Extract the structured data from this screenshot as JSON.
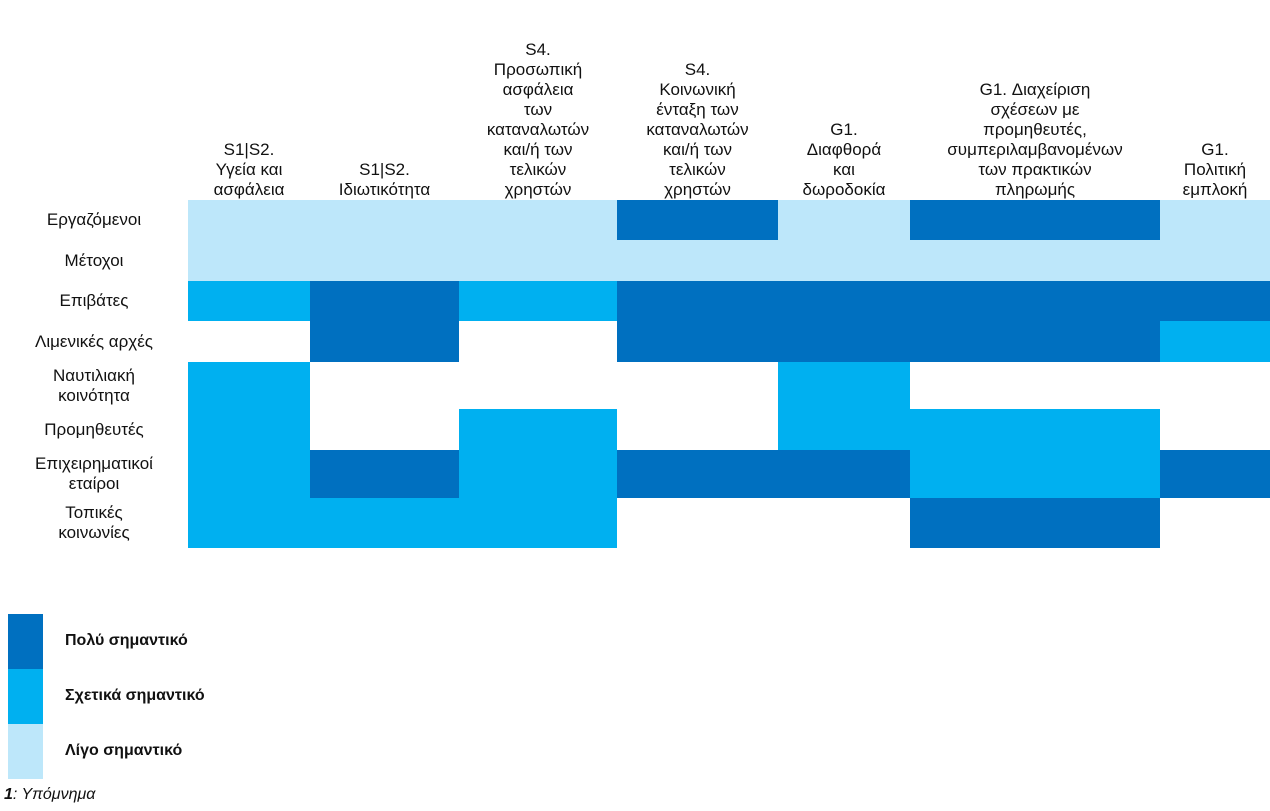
{
  "colors": {
    "very": "#0070C0",
    "relative": "#00B0F0",
    "little": "#BDE7FA",
    "none": "#FFFFFF"
  },
  "chart_data": {
    "type": "heatmap",
    "columns": [
      "S1|S2. Υγεία και ασφάλεια",
      "S1|S2. Ιδιωτικότητα",
      "S4. Προσωπική ασφάλεια των καταναλωτών και/ή των τελικών χρηστών",
      "S4. Κοινωνική ένταξη των καταναλωτών και/ή των τελικών χρηστών",
      "G1. Διαφθορά και δωροδοκία",
      "G1. Διαχείριση σχέσεων με προμηθευτές, συμπεριλαμβανομένων των πρακτικών πληρωμής",
      "G1. Πολιτική εμπλοκή"
    ],
    "rows": [
      "Εργαζόμενοι",
      "Μέτοχοι",
      "Επιβάτες",
      "Λιμενικές αρχές",
      "Ναυτιλιακή κοινότητα",
      "Προμηθευτές",
      "Επιχειρηματικοί εταίροι",
      "Τοπικές κοινωνίες"
    ],
    "scale": {
      "3": "Πολύ σημαντικό",
      "2": "Σχετικά σημαντικό",
      "1": "Λίγο σημαντικό",
      "0": ""
    },
    "values": [
      [
        1,
        1,
        1,
        3,
        1,
        3,
        1
      ],
      [
        1,
        1,
        1,
        1,
        1,
        1,
        1
      ],
      [
        2,
        3,
        2,
        3,
        3,
        3,
        3
      ],
      [
        0,
        3,
        0,
        3,
        3,
        3,
        2
      ],
      [
        2,
        0,
        0,
        0,
        2,
        0,
        0
      ],
      [
        2,
        0,
        2,
        0,
        2,
        2,
        0
      ],
      [
        2,
        3,
        2,
        3,
        3,
        2,
        3
      ],
      [
        2,
        2,
        2,
        0,
        0,
        3,
        0
      ]
    ]
  },
  "column_headers": [
    [
      "S1|S2.",
      "Υγεία και",
      "ασφάλεια"
    ],
    [
      "S1|S2.",
      "Ιδιωτικότητα"
    ],
    [
      "S4.",
      "Προσωπική",
      "ασφάλεια",
      "των",
      "καταναλωτών",
      "και/ή των",
      "τελικών",
      "χρηστών"
    ],
    [
      "S4.",
      "Κοινωνική",
      "ένταξη των",
      "καταναλωτών",
      "και/ή των",
      "τελικών",
      "χρηστών"
    ],
    [
      "G1.",
      "Διαφθορά",
      "και",
      "δωροδοκία"
    ],
    [
      "G1. Διαχείριση",
      "σχέσεων με",
      "προμηθευτές,",
      "συμπεριλαμβανομένων",
      "των πρακτικών",
      "πληρωμής"
    ],
    [
      "G1.",
      "Πολιτική",
      "εμπλοκή"
    ]
  ],
  "row_headers": [
    [
      "Εργαζόμενοι"
    ],
    [
      "Μέτοχοι"
    ],
    [
      "Επιβάτες"
    ],
    [
      "Λιμενικές αρχές"
    ],
    [
      "Ναυτιλιακή",
      "κοινότητα"
    ],
    [
      "Προμηθευτές"
    ],
    [
      "Επιχειρηματικοί",
      "εταίροι"
    ],
    [
      "Τοπικές",
      "κοινωνίες"
    ]
  ],
  "legend": {
    "very": "Πολύ σημαντικό",
    "relative": "Σχετικά σημαντικό",
    "little": "Λίγο σημαντικό"
  },
  "caption": {
    "number": "1",
    "text": ": Υπόμνημα"
  }
}
